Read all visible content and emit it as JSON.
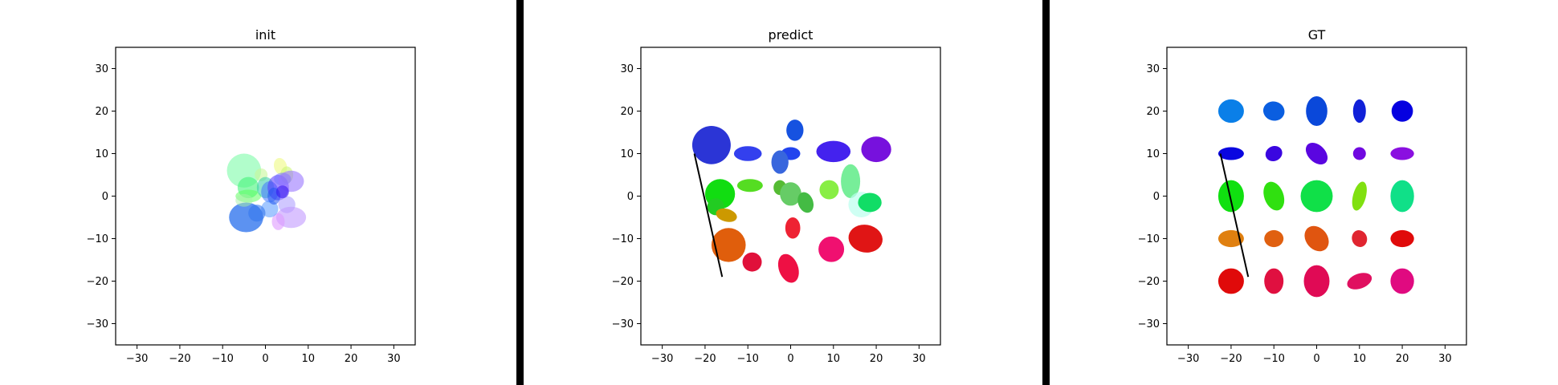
{
  "chart_data": [
    {
      "type": "scatter",
      "title": "init",
      "xlim": [
        -35,
        35
      ],
      "ylim": [
        -35,
        35
      ],
      "xticks": [
        -30,
        -20,
        -10,
        0,
        10,
        20,
        30
      ],
      "yticks": [
        -30,
        -20,
        -10,
        0,
        10,
        20,
        30
      ],
      "grid": false,
      "ellipses": [
        {
          "x": -5,
          "y": 6,
          "w": 8,
          "h": 8,
          "angle": 0,
          "color": "#7dfba9",
          "alpha": 0.6
        },
        {
          "x": -4,
          "y": 2,
          "w": 5,
          "h": 5,
          "angle": 0,
          "color": "#45f47a",
          "alpha": 0.6
        },
        {
          "x": -4,
          "y": 0,
          "w": 6,
          "h": 3,
          "angle": 0,
          "color": "#55ff55",
          "alpha": 0.5
        },
        {
          "x": -1,
          "y": 5,
          "w": 3,
          "h": 3,
          "angle": 0,
          "color": "#c8f79a",
          "alpha": 0.6
        },
        {
          "x": 3.5,
          "y": 7,
          "w": 3,
          "h": 4,
          "angle": 15,
          "color": "#eefa82",
          "alpha": 0.6
        },
        {
          "x": 5,
          "y": 5,
          "w": 3,
          "h": 4,
          "angle": 0,
          "color": "#ccf777",
          "alpha": 0.6
        },
        {
          "x": 0,
          "y": 2,
          "w": 4,
          "h": 5,
          "angle": 0,
          "color": "#33ccaa",
          "alpha": 0.55
        },
        {
          "x": 1,
          "y": 1,
          "w": 4,
          "h": 5,
          "angle": 0,
          "color": "#4477ff",
          "alpha": 0.55
        },
        {
          "x": 3,
          "y": 2,
          "w": 5,
          "h": 6,
          "angle": 0,
          "color": "#5533ff",
          "alpha": 0.55
        },
        {
          "x": 4,
          "y": 4,
          "w": 4,
          "h": 3,
          "angle": 0,
          "color": "#7777ff",
          "alpha": 0.55
        },
        {
          "x": 6,
          "y": 3.5,
          "w": 6,
          "h": 5,
          "angle": 0,
          "color": "#9977ff",
          "alpha": 0.6
        },
        {
          "x": 5,
          "y": -2,
          "w": 4,
          "h": 4,
          "angle": 0,
          "color": "#aa99ff",
          "alpha": 0.55
        },
        {
          "x": 6,
          "y": -5,
          "w": 7,
          "h": 5,
          "angle": 0,
          "color": "#c299ff",
          "alpha": 0.6
        },
        {
          "x": 3,
          "y": -6,
          "w": 3,
          "h": 4,
          "angle": 0,
          "color": "#dd99ff",
          "alpha": 0.6
        },
        {
          "x": 1,
          "y": -3,
          "w": 4,
          "h": 4,
          "angle": 0,
          "color": "#5599ff",
          "alpha": 0.55
        },
        {
          "x": -2,
          "y": -4,
          "w": 4,
          "h": 4,
          "angle": 0,
          "color": "#3377ee",
          "alpha": 0.6
        },
        {
          "x": -4.5,
          "y": -5,
          "w": 8,
          "h": 7,
          "angle": 0,
          "color": "#3377ee",
          "alpha": 0.8
        },
        {
          "x": -5,
          "y": -1,
          "w": 4,
          "h": 3,
          "angle": 0,
          "color": "#a8f0a8",
          "alpha": 0.5
        },
        {
          "x": 2,
          "y": 0,
          "w": 3,
          "h": 4,
          "angle": 0,
          "color": "#2255ee",
          "alpha": 0.55
        },
        {
          "x": 4,
          "y": 1,
          "w": 3,
          "h": 3,
          "angle": 0,
          "color": "#3311ee",
          "alpha": 0.55
        }
      ],
      "lines": []
    },
    {
      "type": "scatter",
      "title": "predict",
      "xlim": [
        -35,
        35
      ],
      "ylim": [
        -35,
        35
      ],
      "xticks": [
        -30,
        -20,
        -10,
        0,
        10,
        20,
        30
      ],
      "yticks": [
        -30,
        -20,
        -10,
        0,
        10,
        20,
        30
      ],
      "grid": false,
      "ellipses": [
        {
          "x": -18.5,
          "y": 12,
          "w": 9,
          "h": 9,
          "angle": 0,
          "color": "#2b35d6",
          "alpha": 1
        },
        {
          "x": -10,
          "y": 10,
          "w": 6.5,
          "h": 3.5,
          "angle": 0,
          "color": "#3340ee",
          "alpha": 1
        },
        {
          "x": 1,
          "y": 15.5,
          "w": 4,
          "h": 5,
          "angle": 0,
          "color": "#1652e0",
          "alpha": 1
        },
        {
          "x": 0,
          "y": 10,
          "w": 4.5,
          "h": 3,
          "angle": 0,
          "color": "#2244ee",
          "alpha": 1
        },
        {
          "x": -2.5,
          "y": 8,
          "w": 4,
          "h": 5.5,
          "angle": 0,
          "color": "#3866dd",
          "alpha": 1
        },
        {
          "x": 10,
          "y": 10.5,
          "w": 8,
          "h": 5,
          "angle": 0,
          "color": "#4422ee",
          "alpha": 1
        },
        {
          "x": 20,
          "y": 11,
          "w": 7,
          "h": 6,
          "angle": 0,
          "color": "#7711dd",
          "alpha": 1
        },
        {
          "x": -16.5,
          "y": 0.5,
          "w": 7,
          "h": 7,
          "angle": 0,
          "color": "#11dd11",
          "alpha": 1
        },
        {
          "x": -17.5,
          "y": -2.5,
          "w": 4,
          "h": 4,
          "angle": 0,
          "color": "#22cc22",
          "alpha": 1
        },
        {
          "x": -9.5,
          "y": 2.5,
          "w": 6,
          "h": 3,
          "angle": 0,
          "color": "#55dd22",
          "alpha": 1
        },
        {
          "x": -2.5,
          "y": 2,
          "w": 3,
          "h": 3.5,
          "angle": 0,
          "color": "#55bb33",
          "alpha": 1
        },
        {
          "x": 0,
          "y": 0.5,
          "w": 5,
          "h": 5.5,
          "angle": 0,
          "color": "#66cc66",
          "alpha": 1
        },
        {
          "x": 3.5,
          "y": -1.5,
          "w": 3.5,
          "h": 5,
          "angle": 20,
          "color": "#44bb44",
          "alpha": 1
        },
        {
          "x": 9,
          "y": 1.5,
          "w": 4.5,
          "h": 4.5,
          "angle": 0,
          "color": "#88ee44",
          "alpha": 1
        },
        {
          "x": 14,
          "y": 3.5,
          "w": 4.5,
          "h": 8,
          "angle": 0,
          "color": "#77ee99",
          "alpha": 1
        },
        {
          "x": 16.5,
          "y": -2,
          "w": 6,
          "h": 6,
          "angle": 0,
          "color": "#bbffee",
          "alpha": 0.7
        },
        {
          "x": 18.5,
          "y": -1.5,
          "w": 5.5,
          "h": 4.5,
          "angle": 0,
          "color": "#11dd66",
          "alpha": 1
        },
        {
          "x": -15,
          "y": -4.5,
          "w": 5,
          "h": 3,
          "angle": -15,
          "color": "#cc9900",
          "alpha": 1
        },
        {
          "x": -14.5,
          "y": -11.5,
          "w": 8,
          "h": 8,
          "angle": 0,
          "color": "#e05e0c",
          "alpha": 1
        },
        {
          "x": -9,
          "y": -15.5,
          "w": 4.5,
          "h": 4.5,
          "angle": 0,
          "color": "#e0103a",
          "alpha": 1
        },
        {
          "x": 0.5,
          "y": -7.5,
          "w": 3.5,
          "h": 5,
          "angle": 0,
          "color": "#ee2233",
          "alpha": 1
        },
        {
          "x": -0.5,
          "y": -17,
          "w": 4.5,
          "h": 7,
          "angle": 20,
          "color": "#ee1044",
          "alpha": 1
        },
        {
          "x": 9.5,
          "y": -12.5,
          "w": 6,
          "h": 6,
          "angle": 0,
          "color": "#f01070",
          "alpha": 1
        },
        {
          "x": 17.5,
          "y": -10,
          "w": 8,
          "h": 6.5,
          "angle": -10,
          "color": "#e01515",
          "alpha": 1
        }
      ],
      "lines": [
        {
          "x": [
            -22.5,
            -16
          ],
          "y": [
            10,
            -19
          ],
          "color": "#000000"
        }
      ]
    },
    {
      "type": "scatter",
      "title": "GT",
      "xlim": [
        -35,
        35
      ],
      "ylim": [
        -35,
        35
      ],
      "xticks": [
        -30,
        -20,
        -10,
        0,
        10,
        20,
        30
      ],
      "yticks": [
        -30,
        -20,
        -10,
        0,
        10,
        20,
        30
      ],
      "grid": false,
      "ellipses": [
        {
          "x": -20,
          "y": 20,
          "w": 6,
          "h": 5.5,
          "angle": 0,
          "color": "#0a7fe8",
          "alpha": 1
        },
        {
          "x": -10,
          "y": 20,
          "w": 5,
          "h": 4.5,
          "angle": -15,
          "color": "#0a5ee0",
          "alpha": 1
        },
        {
          "x": 0,
          "y": 20,
          "w": 5,
          "h": 7,
          "angle": 0,
          "color": "#0a48da",
          "alpha": 1
        },
        {
          "x": 10,
          "y": 20,
          "w": 3,
          "h": 5.5,
          "angle": 0,
          "color": "#1020d8",
          "alpha": 1
        },
        {
          "x": 20,
          "y": 20,
          "w": 5,
          "h": 5,
          "angle": 0,
          "color": "#0500e0",
          "alpha": 1
        },
        {
          "x": -20,
          "y": 10,
          "w": 6,
          "h": 3,
          "angle": 0,
          "color": "#0a06e0",
          "alpha": 1
        },
        {
          "x": -10,
          "y": 10,
          "w": 4,
          "h": 3.5,
          "angle": 25,
          "color": "#3a06e0",
          "alpha": 1
        },
        {
          "x": 0,
          "y": 10,
          "w": 4,
          "h": 6,
          "angle": 45,
          "color": "#5a06e0",
          "alpha": 1
        },
        {
          "x": 10,
          "y": 10,
          "w": 3,
          "h": 3,
          "angle": 0,
          "color": "#7008e0",
          "alpha": 1
        },
        {
          "x": 20,
          "y": 10,
          "w": 5.5,
          "h": 3,
          "angle": 0,
          "color": "#8a10e0",
          "alpha": 1
        },
        {
          "x": -20,
          "y": 0,
          "w": 6,
          "h": 7.5,
          "angle": 0,
          "color": "#10e010",
          "alpha": 1
        },
        {
          "x": -10,
          "y": 0,
          "w": 4.5,
          "h": 7,
          "angle": 20,
          "color": "#30e010",
          "alpha": 1
        },
        {
          "x": 0,
          "y": 0,
          "w": 7.5,
          "h": 7.5,
          "angle": 0,
          "color": "#10e048",
          "alpha": 1
        },
        {
          "x": 10,
          "y": 0,
          "w": 3,
          "h": 7,
          "angle": -15,
          "color": "#80e010",
          "alpha": 1
        },
        {
          "x": 20,
          "y": 0,
          "w": 5.5,
          "h": 7.5,
          "angle": 0,
          "color": "#10e088",
          "alpha": 1
        },
        {
          "x": -20,
          "y": -10,
          "w": 6,
          "h": 4,
          "angle": 0,
          "color": "#e08010",
          "alpha": 1
        },
        {
          "x": -10,
          "y": -10,
          "w": 4.5,
          "h": 4,
          "angle": 0,
          "color": "#e06010",
          "alpha": 1
        },
        {
          "x": 0,
          "y": -10,
          "w": 5,
          "h": 6.5,
          "angle": 40,
          "color": "#e05510",
          "alpha": 1
        },
        {
          "x": 10,
          "y": -10,
          "w": 3.5,
          "h": 4,
          "angle": 20,
          "color": "#e02530",
          "alpha": 1
        },
        {
          "x": 20,
          "y": -10,
          "w": 5.5,
          "h": 4,
          "angle": 0,
          "color": "#e00a0a",
          "alpha": 1
        },
        {
          "x": -20,
          "y": -20,
          "w": 6,
          "h": 6,
          "angle": 0,
          "color": "#e00a0a",
          "alpha": 1
        },
        {
          "x": -10,
          "y": -20,
          "w": 4.5,
          "h": 6,
          "angle": 0,
          "color": "#e01040",
          "alpha": 1
        },
        {
          "x": 0,
          "y": -20,
          "w": 6,
          "h": 7.5,
          "angle": 0,
          "color": "#e00a55",
          "alpha": 1
        },
        {
          "x": 10,
          "y": -20,
          "w": 6,
          "h": 3.5,
          "angle": 20,
          "color": "#e01060",
          "alpha": 1
        },
        {
          "x": 20,
          "y": -20,
          "w": 5.5,
          "h": 6,
          "angle": 0,
          "color": "#e00a80",
          "alpha": 1
        }
      ],
      "lines": [
        {
          "x": [
            -22.5,
            -16
          ],
          "y": [
            10,
            -19
          ],
          "color": "#000000"
        }
      ]
    }
  ],
  "separator_color": "#000000"
}
